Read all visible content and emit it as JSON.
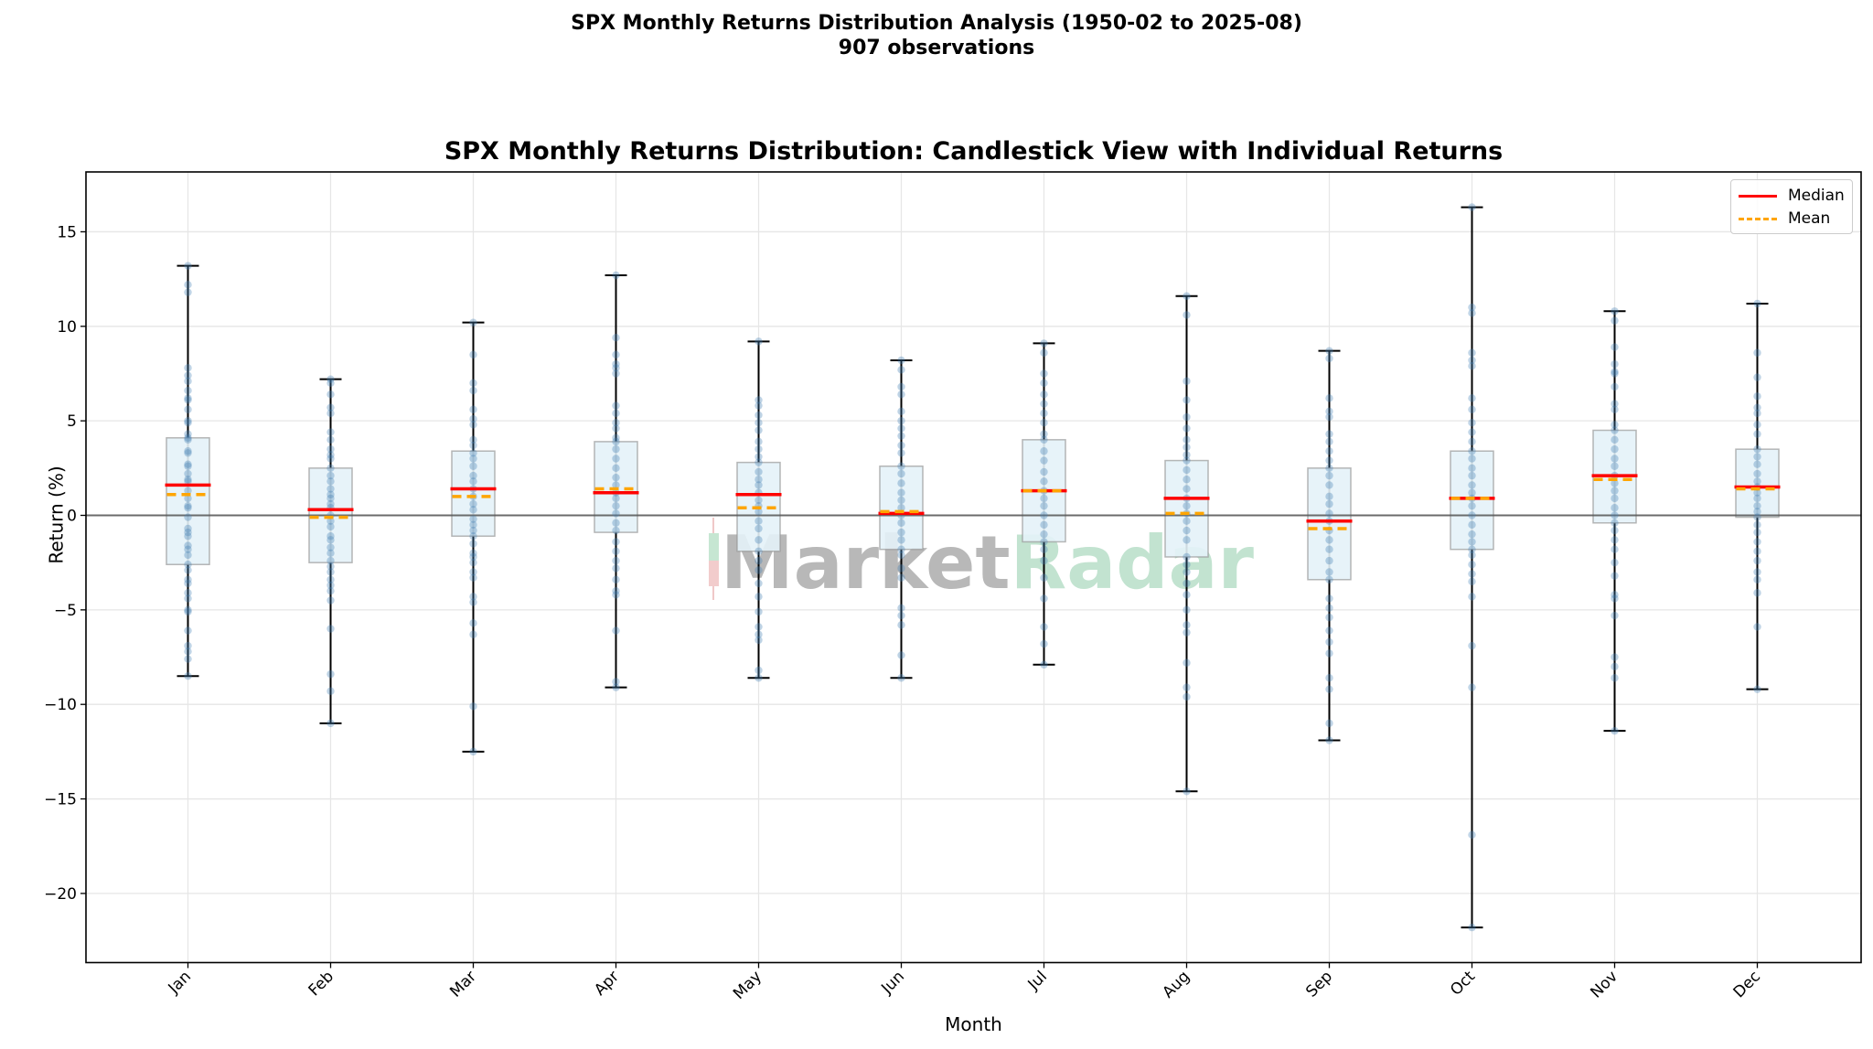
{
  "suptitle": {
    "line1": "SPX Monthly Returns Distribution Analysis (1950-02 to 2025-08)",
    "line2": "907 observations"
  },
  "axes": {
    "title": "SPX Monthly Returns Distribution: Candlestick View with Individual Returns",
    "xlabel": "Month",
    "ylabel": "Return (%)"
  },
  "legend": {
    "median_label": "Median",
    "mean_label": "Mean"
  },
  "watermark": {
    "part1": "Market",
    "part2": "Radar"
  },
  "colors": {
    "median": "#ff0000",
    "mean": "#ffa500",
    "box_fill": "#add8e6",
    "box_edge": "#999999",
    "points": "#4682b4",
    "whisker": "#000000",
    "zero_line": "#555555",
    "grid": "#e6e6e6",
    "watermark_gray": "#b4b4b4",
    "watermark_green": "#bfe3cf"
  },
  "chart_data": {
    "type": "box",
    "title": "SPX Monthly Returns Distribution: Candlestick View with Individual Returns",
    "suptitle": "SPX Monthly Returns Distribution Analysis (1950-02 to 2025-08) — 907 observations",
    "xlabel": "Month",
    "ylabel": "Return (%)",
    "ylim": [
      -23.7,
      18.2
    ],
    "yticks": [
      -20,
      -15,
      -10,
      -5,
      0,
      5,
      10,
      15
    ],
    "grid": true,
    "legend_position": "upper right",
    "legend": [
      "Median",
      "Mean"
    ],
    "categories": [
      "Jan",
      "Feb",
      "Mar",
      "Apr",
      "May",
      "Jun",
      "Jul",
      "Aug",
      "Sep",
      "Oct",
      "Nov",
      "Dec"
    ],
    "series": [
      {
        "name": "Max",
        "values": [
          13.2,
          7.2,
          10.2,
          12.7,
          9.2,
          8.2,
          9.1,
          11.6,
          8.7,
          16.3,
          10.8,
          11.2
        ]
      },
      {
        "name": "Q3",
        "values": [
          4.1,
          2.5,
          3.4,
          3.9,
          2.8,
          2.6,
          4.0,
          2.9,
          2.5,
          3.4,
          4.5,
          3.5
        ]
      },
      {
        "name": "Median",
        "values": [
          1.6,
          0.3,
          1.4,
          1.2,
          1.1,
          0.1,
          1.3,
          0.9,
          -0.3,
          0.9,
          2.1,
          1.5
        ]
      },
      {
        "name": "Mean",
        "values": [
          1.1,
          -0.1,
          1.0,
          1.4,
          0.4,
          0.2,
          1.3,
          0.1,
          -0.7,
          0.9,
          1.9,
          1.4
        ]
      },
      {
        "name": "Q1",
        "values": [
          -2.6,
          -2.5,
          -1.1,
          -0.9,
          -1.9,
          -1.8,
          -1.4,
          -2.2,
          -3.4,
          -1.8,
          -0.4,
          -0.1
        ]
      },
      {
        "name": "Min",
        "values": [
          -8.5,
          -11.0,
          -12.5,
          -9.1,
          -8.6,
          -8.6,
          -7.9,
          -14.6,
          -11.9,
          -21.8,
          -11.4,
          -9.2
        ]
      }
    ],
    "points": {
      "Jan": [
        13.2,
        12.2,
        11.8,
        7.8,
        7.4,
        7.1,
        6.6,
        6.2,
        6.1,
        5.6,
        5.0,
        4.9,
        4.3,
        4.1,
        4.0,
        3.4,
        3.3,
        2.7,
        2.6,
        2.2,
        1.9,
        1.8,
        1.3,
        0.9,
        0.5,
        0.4,
        -0.1,
        -0.7,
        -0.9,
        -1.1,
        -1.6,
        -1.8,
        -2.1,
        -2.6,
        -2.9,
        -3.4,
        -3.6,
        -4.1,
        -4.4,
        -5.0,
        -5.1,
        -6.1,
        -6.9,
        -7.2,
        -7.6,
        -8.5
      ],
      "Feb": [
        7.2,
        7.0,
        6.4,
        5.7,
        5.4,
        4.4,
        4.0,
        3.5,
        3.2,
        3.0,
        2.5,
        2.1,
        1.8,
        1.4,
        1.1,
        0.9,
        0.6,
        0.4,
        0.0,
        -0.3,
        -0.6,
        -1.1,
        -1.3,
        -1.7,
        -2.0,
        -2.4,
        -2.7,
        -3.0,
        -3.4,
        -3.7,
        -4.0,
        -4.5,
        -6.0,
        -8.4,
        -9.3,
        -11.0
      ],
      "Mar": [
        10.2,
        8.5,
        7.0,
        6.6,
        5.6,
        5.1,
        4.8,
        4.0,
        3.7,
        3.3,
        3.0,
        2.6,
        2.1,
        1.8,
        1.4,
        1.0,
        0.6,
        0.3,
        -0.2,
        -0.5,
        -0.8,
        -1.1,
        -1.5,
        -2.0,
        -2.2,
        -2.5,
        -3.0,
        -3.3,
        -4.3,
        -4.6,
        -5.7,
        -6.3,
        -10.1,
        -12.5
      ],
      "Apr": [
        12.7,
        9.4,
        8.5,
        8.0,
        7.8,
        7.5,
        5.8,
        5.4,
        4.9,
        4.6,
        4.1,
        3.9,
        3.5,
        3.0,
        2.5,
        2.0,
        1.6,
        1.2,
        0.9,
        0.5,
        0.1,
        -0.4,
        -0.8,
        -1.4,
        -1.9,
        -2.4,
        -2.8,
        -3.4,
        -4.0,
        -4.2,
        -6.1,
        -8.8,
        -9.1
      ],
      "May": [
        9.2,
        6.1,
        5.8,
        5.3,
        4.9,
        4.5,
        3.9,
        3.5,
        3.1,
        2.8,
        2.3,
        1.9,
        1.6,
        1.2,
        0.8,
        0.5,
        0.2,
        -0.3,
        -0.7,
        -1.3,
        -1.9,
        -2.4,
        -2.9,
        -3.6,
        -4.3,
        -5.1,
        -5.9,
        -6.3,
        -6.6,
        -8.2,
        -8.6
      ],
      "Jun": [
        8.2,
        7.7,
        6.8,
        6.4,
        5.5,
        5.0,
        4.6,
        4.2,
        3.7,
        3.3,
        2.6,
        2.2,
        1.7,
        1.2,
        0.8,
        0.4,
        0.0,
        -0.4,
        -0.9,
        -1.3,
        -1.8,
        -2.1,
        -2.8,
        -3.3,
        -4.9,
        -5.3,
        -5.8,
        -7.4,
        -8.6
      ],
      "Jul": [
        9.1,
        8.6,
        7.5,
        7.0,
        6.4,
        5.9,
        5.4,
        4.9,
        4.3,
        4.0,
        3.4,
        2.9,
        2.3,
        1.8,
        1.3,
        0.9,
        0.5,
        0.0,
        -0.5,
        -1.0,
        -1.4,
        -1.8,
        -2.4,
        -3.3,
        -4.4,
        -5.9,
        -6.8,
        -7.9
      ],
      "Aug": [
        11.6,
        10.6,
        7.1,
        6.1,
        5.2,
        4.6,
        4.0,
        3.6,
        3.2,
        2.9,
        2.4,
        1.9,
        1.4,
        0.9,
        0.5,
        0.1,
        -0.3,
        -0.8,
        -1.3,
        -2.2,
        -2.6,
        -3.0,
        -3.6,
        -4.2,
        -5.0,
        -5.8,
        -6.2,
        -7.8,
        -9.1,
        -9.6,
        -14.6
      ],
      "Sep": [
        8.7,
        8.3,
        6.2,
        5.5,
        5.2,
        4.3,
        3.9,
        3.4,
        2.9,
        2.5,
        2.1,
        1.6,
        1.0,
        0.6,
        0.1,
        -0.3,
        -0.8,
        -1.3,
        -1.8,
        -2.4,
        -3.0,
        -3.4,
        -4.4,
        -4.9,
        -5.4,
        -6.1,
        -6.7,
        -7.3,
        -8.6,
        -9.2,
        -11.0,
        -11.9
      ],
      "Oct": [
        16.3,
        11.0,
        10.7,
        8.6,
        8.2,
        7.9,
        6.2,
        5.6,
        4.9,
        4.4,
        3.9,
        3.4,
        3.0,
        2.5,
        2.1,
        1.6,
        1.2,
        0.9,
        0.5,
        0.0,
        -0.5,
        -1.0,
        -1.4,
        -1.8,
        -2.1,
        -2.6,
        -3.1,
        -3.5,
        -4.3,
        -6.9,
        -9.1,
        -16.9,
        -21.8
      ],
      "Nov": [
        10.8,
        10.3,
        8.9,
        8.0,
        7.6,
        7.5,
        6.8,
        5.9,
        5.6,
        4.8,
        4.5,
        4.0,
        3.5,
        3.0,
        2.6,
        2.1,
        1.7,
        1.3,
        0.9,
        0.4,
        0.0,
        -0.4,
        -0.8,
        -1.3,
        -1.8,
        -2.5,
        -3.2,
        -4.2,
        -4.4,
        -5.3,
        -7.5,
        -8.0,
        -8.6,
        -11.4
      ],
      "Dec": [
        11.2,
        8.6,
        7.3,
        6.3,
        5.7,
        5.4,
        4.8,
        4.3,
        3.5,
        3.1,
        2.7,
        2.2,
        1.8,
        1.5,
        1.2,
        0.9,
        0.5,
        0.2,
        -0.1,
        -0.5,
        -0.9,
        -1.4,
        -1.9,
        -2.4,
        -3.0,
        -3.4,
        -4.1,
        -5.9,
        -9.2
      ]
    }
  }
}
